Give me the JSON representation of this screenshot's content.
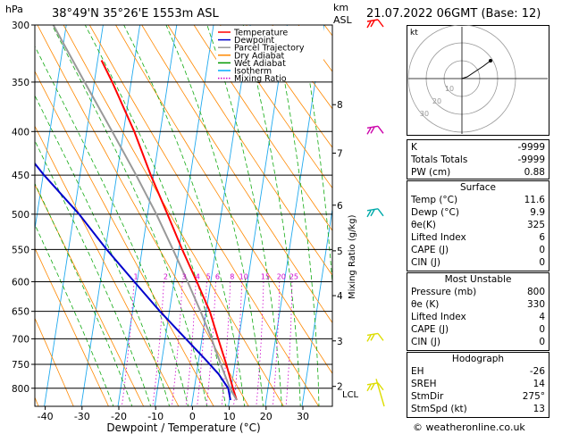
{
  "header": {
    "pressure_unit": "hPa",
    "location": "38°49'N  35°26'E  1553m  ASL",
    "km_label": "km",
    "asl_label": "ASL",
    "datetime": "21.07.2022  06GMT  (Base: 12)"
  },
  "footer": {
    "credit": "© weatheronline.co.uk"
  },
  "chart_data": {
    "type": "line",
    "title": "",
    "xlabel": "Dewpoint / Temperature (°C)",
    "ylabel": "",
    "mixing_ratio_label": "Mixing Ratio (g/kg)",
    "pressure_ticks": [
      300,
      350,
      400,
      450,
      500,
      550,
      600,
      650,
      700,
      750,
      800
    ],
    "temperature_ticks": [
      -40,
      -30,
      -20,
      -10,
      0,
      10,
      20,
      30
    ],
    "xlim": [
      -45,
      35
    ],
    "ylim_hpa": [
      300,
      840
    ],
    "skew_deg_per_hpa": 0.03,
    "km_ticks": [
      {
        "label": "8",
        "p": 372
      },
      {
        "label": "7",
        "p": 424
      },
      {
        "label": "6",
        "p": 488
      },
      {
        "label": "5",
        "p": 552
      },
      {
        "label": "4",
        "p": 623
      },
      {
        "label": "3",
        "p": 704
      },
      {
        "label": "2",
        "p": 796
      }
    ],
    "lcl": {
      "label": "LCL",
      "p": 812
    },
    "mixing_ratio_ticks": [
      "1",
      "2",
      "3",
      "4",
      "5",
      "6",
      "8",
      "10",
      "15",
      "20",
      "25"
    ],
    "legend": {
      "placement": "top",
      "entries": [
        {
          "name": "Temperature",
          "color": "#ff0000",
          "style": "solid"
        },
        {
          "name": "Dewpoint",
          "color": "#0000cc",
          "style": "solid"
        },
        {
          "name": "Parcel Trajectory",
          "color": "#999999",
          "style": "solid"
        },
        {
          "name": "Dry Adiabat",
          "color": "#ff8800",
          "style": "solid"
        },
        {
          "name": "Wet Adiabat",
          "color": "#009900",
          "style": "solid"
        },
        {
          "name": "Isotherm",
          "color": "#00aaff",
          "style": "solid"
        },
        {
          "name": "Mixing Ratio",
          "color": "#cc00cc",
          "style": "dotted"
        }
      ]
    },
    "series": [
      {
        "name": "Temperature",
        "color": "#ff0000",
        "points": [
          [
            826,
            11.6
          ],
          [
            800,
            9.8
          ],
          [
            750,
            6.5
          ],
          [
            700,
            2.8
          ],
          [
            650,
            -1.0
          ],
          [
            600,
            -6.0
          ],
          [
            550,
            -11.5
          ],
          [
            500,
            -17.0
          ],
          [
            450,
            -23.0
          ],
          [
            400,
            -29.0
          ],
          [
            350,
            -36.5
          ],
          [
            330,
            -40.0
          ]
        ]
      },
      {
        "name": "Dewpoint",
        "color": "#0000cc",
        "points": [
          [
            826,
            9.9
          ],
          [
            800,
            8.5
          ],
          [
            770,
            5.0
          ],
          [
            740,
            0.5
          ],
          [
            700,
            -6.0
          ],
          [
            650,
            -14.5
          ],
          [
            600,
            -23.0
          ],
          [
            550,
            -32.0
          ],
          [
            500,
            -41.0
          ],
          [
            450,
            -52.0
          ],
          [
            400,
            -63.0
          ],
          [
            350,
            -74.0
          ],
          [
            300,
            -78.0
          ]
        ]
      },
      {
        "name": "Parcel Trajectory",
        "color": "#999999",
        "points": [
          [
            826,
            11.6
          ],
          [
            800,
            9.0
          ],
          [
            750,
            5.0
          ],
          [
            700,
            1.0
          ],
          [
            650,
            -3.5
          ],
          [
            600,
            -8.5
          ],
          [
            550,
            -14.0
          ],
          [
            500,
            -20.0
          ],
          [
            450,
            -27.0
          ],
          [
            400,
            -35.0
          ],
          [
            350,
            -44.0
          ],
          [
            300,
            -54.0
          ]
        ]
      }
    ]
  },
  "hodograph": {
    "unit_label": "kt",
    "ring_labels": [
      "10",
      "20",
      "30"
    ],
    "points_kt": [
      [
        0,
        0
      ],
      [
        3,
        1
      ],
      [
        6,
        3
      ],
      [
        9,
        5
      ],
      [
        12,
        7
      ],
      [
        16,
        10
      ]
    ]
  },
  "winds": [
    {
      "p": 300,
      "color": "#ff0000"
    },
    {
      "p": 400,
      "color": "#cc00aa"
    },
    {
      "p": 500,
      "color": "#00aaaa"
    },
    {
      "p": 700,
      "color": "#dddd00"
    },
    {
      "p": 800,
      "color": "#dddd00"
    }
  ],
  "indices": [
    {
      "label": "K",
      "value": "-9999"
    },
    {
      "label": "Totals Totals",
      "value": "-9999"
    },
    {
      "label": "PW (cm)",
      "value": "0.88"
    }
  ],
  "surface": {
    "title": "Surface",
    "rows": [
      {
        "label": "Temp (°C)",
        "value": "11.6"
      },
      {
        "label": "Dewp (°C)",
        "value": "9.9"
      },
      {
        "label": "θe(K)",
        "value": "325"
      },
      {
        "label": "Lifted Index",
        "value": "6"
      },
      {
        "label": "CAPE (J)",
        "value": "0"
      },
      {
        "label": "CIN (J)",
        "value": "0"
      }
    ]
  },
  "most_unstable": {
    "title": "Most Unstable",
    "rows": [
      {
        "label": "Pressure (mb)",
        "value": "800"
      },
      {
        "label": "θe (K)",
        "value": "330"
      },
      {
        "label": "Lifted Index",
        "value": "4"
      },
      {
        "label": "CAPE (J)",
        "value": "0"
      },
      {
        "label": "CIN (J)",
        "value": "0"
      }
    ]
  },
  "hodograph_table": {
    "title": "Hodograph",
    "rows": [
      {
        "label": "EH",
        "value": "-26"
      },
      {
        "label": "SREH",
        "value": "14"
      },
      {
        "label": "StmDir",
        "value": "275°"
      },
      {
        "label": "StmSpd (kt)",
        "value": "13"
      }
    ]
  }
}
